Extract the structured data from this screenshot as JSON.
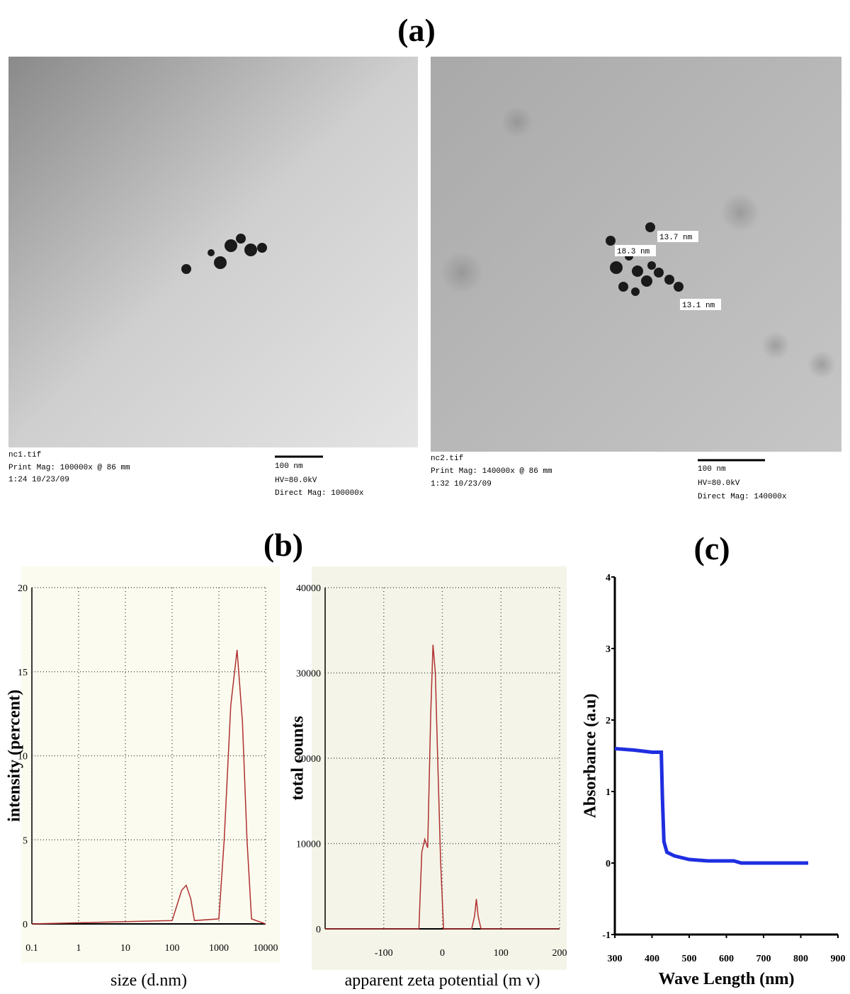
{
  "panel_labels": {
    "a": "(a)",
    "b": "(b)",
    "c": "(c)"
  },
  "tem_images": [
    {
      "file": "nc1.tif",
      "print_mag": "Print Mag: 100000x @ 86 mm",
      "time": "1:24 10/23/09",
      "scale": "100 nm",
      "hv": "HV=80.0kV",
      "direct_mag": "Direct Mag: 100000x",
      "annotations": []
    },
    {
      "file": "nc2.tif",
      "print_mag": "Print Mag: 140000x @ 86 mm",
      "time": "1:32 10/23/09",
      "scale": "100 nm",
      "hv": "HV=80.0kV",
      "direct_mag": "Direct Mag: 140000x",
      "annotations": [
        "13.7 nm",
        "18.3 nm",
        "13.1 nm"
      ]
    }
  ],
  "chart_data": [
    {
      "type": "line",
      "xlabel": "size (d.nm)",
      "ylabel": "intensity (percent)",
      "xscale": "log",
      "grid": true,
      "color": "#b03030",
      "x": [
        0.1,
        100,
        130,
        160,
        200,
        250,
        300,
        1000,
        1300,
        1800,
        2450,
        3200,
        4000,
        5000,
        10000
      ],
      "values": [
        0,
        0.2,
        1.2,
        2.0,
        2.3,
        1.5,
        0.2,
        0.3,
        5,
        13,
        16.3,
        12,
        5,
        0.3,
        0
      ],
      "xlim": [
        0.1,
        10000
      ],
      "xticks": [
        0.1,
        1,
        10,
        100,
        1000,
        10000
      ],
      "ylim": [
        0,
        20
      ],
      "yticks": [
        0,
        5,
        10,
        15,
        20
      ]
    },
    {
      "type": "line",
      "xlabel": "apparent zeta potential (m v)",
      "ylabel": "total counts",
      "grid": true,
      "color": "#b03030",
      "x": [
        -200,
        -40,
        -35,
        -30,
        -25,
        -20,
        -16,
        -12,
        -8,
        -3,
        2,
        50,
        55,
        58,
        61,
        66,
        200
      ],
      "values": [
        0,
        0,
        9000,
        10500,
        9500,
        25000,
        33300,
        30000,
        20000,
        8000,
        0,
        0,
        1500,
        3500,
        1500,
        0,
        0
      ],
      "xlim": [
        -200,
        200
      ],
      "xticks": [
        -100,
        0,
        100,
        200
      ],
      "ylim": [
        0,
        40000
      ],
      "yticks": [
        0,
        10000,
        20000,
        30000,
        40000
      ]
    },
    {
      "type": "line",
      "xlabel": "Wave Length (nm)",
      "ylabel": "Absorbance (a.u)",
      "grid": false,
      "color": "#1f2ee0",
      "x": [
        300,
        350,
        400,
        425,
        428,
        432,
        440,
        460,
        500,
        550,
        620,
        640,
        820
      ],
      "values": [
        1.6,
        1.58,
        1.55,
        1.55,
        0.9,
        0.3,
        0.15,
        0.1,
        0.05,
        0.03,
        0.03,
        0,
        0
      ],
      "xlim": [
        300,
        900
      ],
      "xticks": [
        300,
        400,
        500,
        600,
        700,
        800,
        900
      ],
      "ylim": [
        -1,
        4
      ],
      "yticks": [
        -1,
        0,
        1,
        2,
        3,
        4
      ]
    }
  ]
}
